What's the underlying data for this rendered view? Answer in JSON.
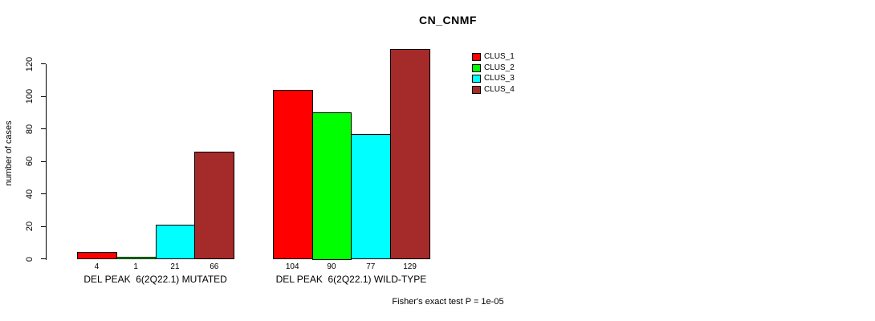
{
  "title": "CN_CNMF",
  "chart_data": {
    "type": "bar",
    "title": "CN_CNMF",
    "xlabel": "",
    "ylabel": "number of cases",
    "ylim": [
      0,
      120
    ],
    "yticks": [
      0,
      20,
      40,
      60,
      80,
      100,
      120
    ],
    "categories": [
      "DEL PEAK  6(2Q22.1) MUTATED",
      "DEL PEAK  6(2Q22.1) WILD-TYPE"
    ],
    "series": [
      {
        "name": "CLUS_1",
        "color": "#FF0000",
        "values": [
          4,
          104
        ]
      },
      {
        "name": "CLUS_2",
        "color": "#00FF00",
        "values": [
          1,
          90
        ]
      },
      {
        "name": "CLUS_3",
        "color": "#00FFFF",
        "values": [
          21,
          77
        ]
      },
      {
        "name": "CLUS_4",
        "color": "#A52A2A",
        "values": [
          66,
          129
        ]
      }
    ],
    "bar_value_labels": [
      [
        "4",
        "1",
        "21",
        "66"
      ],
      [
        "104",
        "90",
        "77",
        "129"
      ]
    ],
    "legend_position": "top-right",
    "legend_entries": [
      "CLUS_1",
      "CLUS_2",
      "CLUS_3",
      "CLUS_4"
    ],
    "grid": false,
    "annotation": "Fisher's exact test P = 1e-05"
  }
}
